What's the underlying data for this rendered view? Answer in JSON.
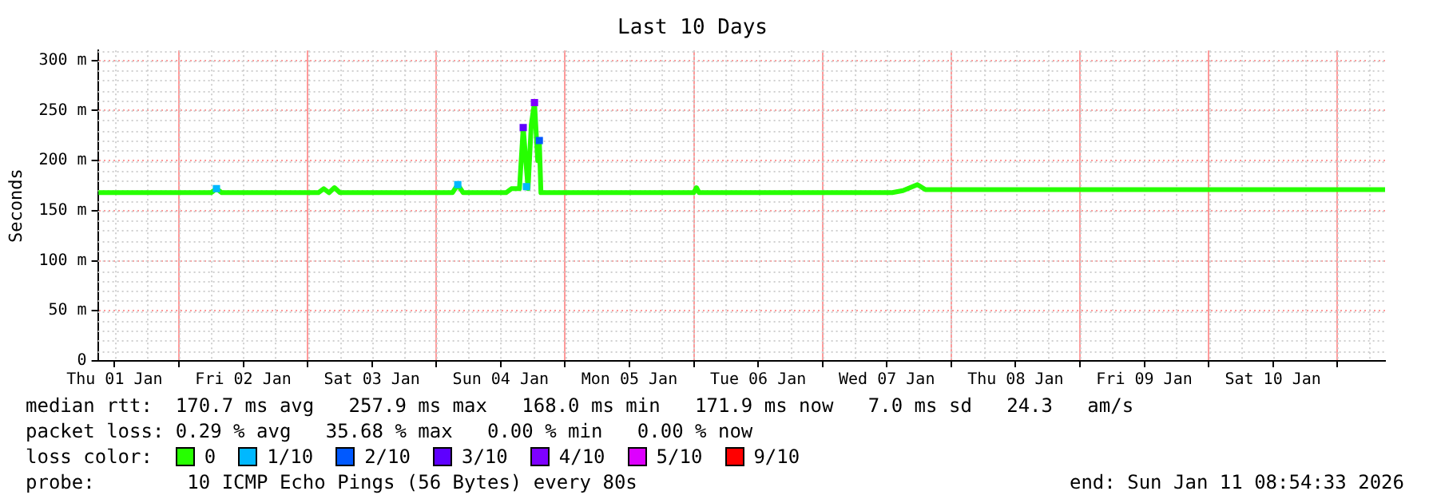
{
  "chart_data": {
    "type": "line",
    "title": "Last 10 Days",
    "ylabel": "Seconds",
    "legend_title": "loss color:",
    "legend": "bottom",
    "grid": true,
    "line_style": "solid",
    "xlim": [
      "2026-01-01T08:54",
      "2026-01-11T08:54"
    ],
    "xticks": [
      {
        "value": "2026-01-01T12:00",
        "label": "Thu 01 Jan"
      },
      {
        "value": "2026-01-02T00:00",
        "label": null
      },
      {
        "value": "2026-01-02T12:00",
        "label": "Fri 02 Jan"
      },
      {
        "value": "2026-01-03T00:00",
        "label": null
      },
      {
        "value": "2026-01-03T12:00",
        "label": "Sat 03 Jan"
      },
      {
        "value": "2026-01-04T00:00",
        "label": null
      },
      {
        "value": "2026-01-04T12:00",
        "label": "Sun 04 Jan"
      },
      {
        "value": "2026-01-05T00:00",
        "label": null
      },
      {
        "value": "2026-01-05T12:00",
        "label": "Mon 05 Jan"
      },
      {
        "value": "2026-01-06T00:00",
        "label": null
      },
      {
        "value": "2026-01-06T12:00",
        "label": "Tue 06 Jan"
      },
      {
        "value": "2026-01-07T00:00",
        "label": null
      },
      {
        "value": "2026-01-07T12:00",
        "label": "Wed 07 Jan"
      },
      {
        "value": "2026-01-08T00:00",
        "label": null
      },
      {
        "value": "2026-01-08T12:00",
        "label": "Thu 08 Jan"
      },
      {
        "value": "2026-01-09T00:00",
        "label": null
      },
      {
        "value": "2026-01-09T12:00",
        "label": "Fri 09 Jan"
      },
      {
        "value": "2026-01-10T00:00",
        "label": null
      },
      {
        "value": "2026-01-10T12:00",
        "label": "Sat 10 Jan"
      },
      {
        "value": "2026-01-11T00:00",
        "label": null
      }
    ],
    "ylim": [
      0,
      310
    ],
    "yticks": [
      0,
      {
        "value": 50,
        "label": "50 m"
      },
      {
        "value": 100,
        "label": "100 m"
      },
      {
        "value": 150,
        "label": "150 m"
      },
      {
        "value": 200,
        "label": "200 m"
      },
      {
        "value": 250,
        "label": "250 m"
      },
      {
        "value": 300,
        "label": "300 m"
      }
    ],
    "series": [
      {
        "name": "0",
        "color": "#26ff00",
        "marker": "none",
        "x": [
          "2026-01-01T09:00",
          "2026-01-02T06:00",
          "2026-01-02T07:00",
          "2026-01-02T08:00",
          "2026-01-03T02:00",
          "2026-01-03T03:00",
          "2026-01-03T04:00",
          "2026-01-03T05:00",
          "2026-01-03T06:00",
          "2026-01-04T03:00",
          "2026-01-04T04:00",
          "2026-01-04T05:00",
          "2026-01-04T13:00",
          "2026-01-04T14:00",
          "2026-01-04T15:30",
          "2026-01-04T16:12",
          "2026-01-04T17:06",
          "2026-01-04T17:42",
          "2026-01-04T18:18",
          "2026-01-04T18:54",
          "2026-01-04T19:12",
          "2026-01-04T19:30",
          "2026-01-06T00:00",
          "2026-01-06T00:30",
          "2026-01-06T01:00",
          "2026-01-07T13:00",
          "2026-01-07T15:00",
          "2026-01-07T17:42",
          "2026-01-07T19:12",
          "2026-01-11T08:54"
        ],
        "values": [
          168,
          168,
          172,
          168,
          168,
          172,
          168,
          173,
          168,
          168,
          176,
          168,
          168,
          172,
          172,
          233,
          172,
          236,
          258,
          200,
          220,
          168,
          168,
          173,
          168,
          168,
          170,
          176,
          171,
          171
        ]
      },
      {
        "name": "1/10",
        "color": "#00b8ff",
        "type": "scatter",
        "marker": "square",
        "x": [
          "2026-01-02T07:00",
          "2026-01-04T04:00",
          "2026-01-04T16:48"
        ],
        "values": [
          172,
          176,
          174
        ]
      },
      {
        "name": "2/10",
        "color": "#0059ff",
        "type": "scatter",
        "marker": "square",
        "x": [
          "2026-01-04T19:12"
        ],
        "values": [
          220
        ]
      },
      {
        "name": "3/10",
        "color": "#5e00ff",
        "type": "scatter",
        "marker": "square",
        "x": [
          "2026-01-04T16:12"
        ],
        "values": [
          233
        ]
      },
      {
        "name": "4/10",
        "color": "#7e00ff",
        "type": "scatter",
        "marker": "square",
        "x": [
          "2026-01-04T18:18"
        ],
        "values": [
          258
        ]
      },
      {
        "name": "5/10",
        "color": "#dd00ff",
        "type": "scatter"
      },
      {
        "name": "9/10",
        "color": "#ff0000",
        "type": "scatter"
      }
    ],
    "annotations": [
      "median rtt:  170.7 ms avg   257.9 ms max   168.0 ms min   171.9 ms now   7.0 ms sd   24.3   am/s",
      "packet loss: 0.29 % avg   35.68 % max   0.00 % min   0.00 % now",
      "probe:        10 ICMP Echo Pings (56 Bytes) every 80s",
      "end: Sun Jan 11 08:54:33 2026"
    ]
  }
}
